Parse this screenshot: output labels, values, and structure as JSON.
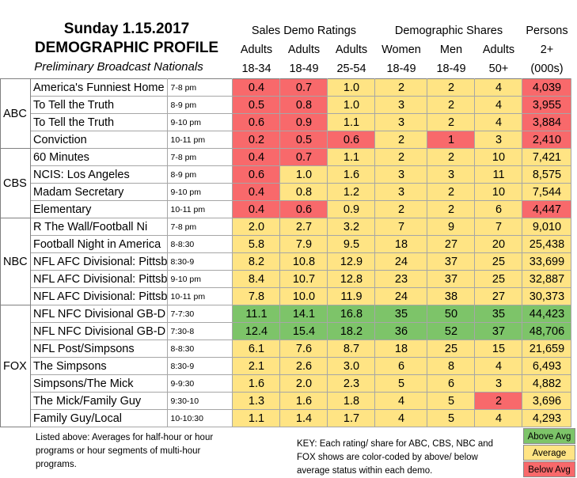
{
  "title_line1": "Sunday 1.15.2017",
  "title_line2": "DEMOGRAPHIC PROFILE",
  "title_line3": "Preliminary Broadcast Nationals",
  "group_headers": [
    "Sales Demo Ratings",
    "Demographic Shares",
    "Persons"
  ],
  "col_labels_a": [
    "Adults",
    "Adults",
    "Adults",
    "Women",
    "Men",
    "Adults",
    "2+"
  ],
  "col_labels_b": [
    "18-34",
    "18-49",
    "25-54",
    "18-49",
    "18-49",
    "50+",
    "(000s)"
  ],
  "colors": {
    "green": "#7dc469",
    "yellow": "#ffe484",
    "red": "#f8696b",
    "grid": "#a6a6a6"
  },
  "networks": [
    {
      "name": "ABC",
      "shows": [
        {
          "name": "America's Funniest Home",
          "slot": "7-8 pm",
          "vals": [
            "0.4",
            "0.7",
            "1.0",
            "2",
            "2",
            "4",
            "4,039"
          ]
        },
        {
          "name": "To Tell the Truth",
          "slot": "8-9 pm",
          "vals": [
            "0.5",
            "0.8",
            "1.0",
            "3",
            "2",
            "4",
            "3,955"
          ]
        },
        {
          "name": "To Tell the Truth",
          "slot": "9-10 pm",
          "vals": [
            "0.6",
            "0.9",
            "1.1",
            "3",
            "2",
            "4",
            "3,884"
          ]
        },
        {
          "name": "Conviction",
          "slot": "10-11 pm",
          "vals": [
            "0.2",
            "0.5",
            "0.6",
            "2",
            "1",
            "3",
            "2,410"
          ]
        }
      ]
    },
    {
      "name": "CBS",
      "shows": [
        {
          "name": "60 Minutes",
          "slot": "7-8 pm",
          "vals": [
            "0.4",
            "0.7",
            "1.1",
            "2",
            "2",
            "10",
            "7,421"
          ]
        },
        {
          "name": "NCIS: Los Angeles",
          "slot": "8-9 pm",
          "vals": [
            "0.6",
            "1.0",
            "1.6",
            "3",
            "3",
            "11",
            "8,575"
          ]
        },
        {
          "name": "Madam Secretary",
          "slot": "9-10 pm",
          "vals": [
            "0.4",
            "0.8",
            "1.2",
            "3",
            "2",
            "10",
            "7,544"
          ]
        },
        {
          "name": "Elementary",
          "slot": "10-11 pm",
          "vals": [
            "0.4",
            "0.6",
            "0.9",
            "2",
            "2",
            "6",
            "4,447"
          ]
        }
      ]
    },
    {
      "name": "NBC",
      "shows": [
        {
          "name": "R The Wall/Football Ni",
          "slot": "7-8 pm",
          "vals": [
            "2.0",
            "2.7",
            "3.2",
            "7",
            "9",
            "7",
            "9,010"
          ]
        },
        {
          "name": "Football Night in America",
          "slot": "8-8:30",
          "vals": [
            "5.8",
            "7.9",
            "9.5",
            "18",
            "27",
            "20",
            "25,438"
          ]
        },
        {
          "name": "NFL AFC Divisional: Pittsb",
          "slot": "8:30-9",
          "vals": [
            "8.2",
            "10.8",
            "12.9",
            "24",
            "37",
            "25",
            "33,699"
          ]
        },
        {
          "name": "NFL AFC Divisional: Pittsb",
          "slot": "9-10 pm",
          "vals": [
            "8.4",
            "10.7",
            "12.8",
            "23",
            "37",
            "25",
            "32,887"
          ]
        },
        {
          "name": "NFL AFC Divisional: Pittsb",
          "slot": "10-11 pm",
          "vals": [
            "7.8",
            "10.0",
            "11.9",
            "24",
            "38",
            "27",
            "30,373"
          ]
        }
      ]
    },
    {
      "name": "FOX",
      "shows": [
        {
          "name": "NFL NFC Divisional GB-D",
          "slot": "7-7:30",
          "vals": [
            "11.1",
            "14.1",
            "16.8",
            "35",
            "50",
            "35",
            "44,423"
          ]
        },
        {
          "name": "NFL NFC Divisional GB-D",
          "slot": "7:30-8",
          "vals": [
            "12.4",
            "15.4",
            "18.2",
            "36",
            "52",
            "37",
            "48,706"
          ]
        },
        {
          "name": "NFL Post/Simpsons",
          "slot": "8-8:30",
          "vals": [
            "6.1",
            "7.6",
            "8.7",
            "18",
            "25",
            "15",
            "21,659"
          ]
        },
        {
          "name": "The Simpsons",
          "slot": "8:30-9",
          "vals": [
            "2.1",
            "2.6",
            "3.0",
            "6",
            "8",
            "4",
            "6,493"
          ]
        },
        {
          "name": "Simpsons/The Mick",
          "slot": "9-9:30",
          "vals": [
            "1.6",
            "2.0",
            "2.3",
            "5",
            "6",
            "3",
            "4,882"
          ]
        },
        {
          "name": "The Mick/Family Guy",
          "slot": "9:30-10",
          "vals": [
            "1.3",
            "1.6",
            "1.8",
            "4",
            "5",
            "2",
            "3,696"
          ]
        },
        {
          "name": "Family Guy/Local",
          "slot": "10-10:30",
          "vals": [
            "1.1",
            "1.4",
            "1.7",
            "4",
            "5",
            "4",
            "4,293"
          ]
        }
      ]
    }
  ],
  "cell_colors": [
    [
      "r",
      "r",
      "y",
      "y",
      "y",
      "y",
      "r"
    ],
    [
      "r",
      "r",
      "y",
      "y",
      "y",
      "y",
      "r"
    ],
    [
      "r",
      "r",
      "y",
      "y",
      "y",
      "y",
      "r"
    ],
    [
      "r",
      "r",
      "r",
      "y",
      "r",
      "y",
      "r"
    ],
    [
      "r",
      "r",
      "y",
      "y",
      "y",
      "y",
      "y"
    ],
    [
      "r",
      "y",
      "y",
      "y",
      "y",
      "y",
      "y"
    ],
    [
      "r",
      "y",
      "y",
      "y",
      "y",
      "y",
      "y"
    ],
    [
      "r",
      "r",
      "y",
      "y",
      "y",
      "y",
      "r"
    ],
    [
      "y",
      "y",
      "y",
      "y",
      "y",
      "y",
      "y"
    ],
    [
      "y",
      "y",
      "y",
      "y",
      "y",
      "y",
      "y"
    ],
    [
      "y",
      "y",
      "y",
      "y",
      "y",
      "y",
      "y"
    ],
    [
      "y",
      "y",
      "y",
      "y",
      "y",
      "y",
      "y"
    ],
    [
      "y",
      "y",
      "y",
      "y",
      "y",
      "y",
      "y"
    ],
    [
      "g",
      "g",
      "g",
      "g",
      "g",
      "g",
      "g"
    ],
    [
      "g",
      "g",
      "g",
      "g",
      "g",
      "g",
      "g"
    ],
    [
      "y",
      "y",
      "y",
      "y",
      "y",
      "y",
      "y"
    ],
    [
      "y",
      "y",
      "y",
      "y",
      "y",
      "y",
      "y"
    ],
    [
      "y",
      "y",
      "y",
      "y",
      "y",
      "y",
      "y"
    ],
    [
      "y",
      "y",
      "y",
      "y",
      "y",
      "r",
      "y"
    ],
    [
      "y",
      "y",
      "y",
      "y",
      "y",
      "y",
      "y"
    ]
  ],
  "footnote": "Listed above: Averages for half-hour or hour programs or hour segments of multi-hour programs.",
  "key_text": "KEY: Each rating/ share for ABC, CBS, NBC and FOX shows are color-coded by above/ below average status within each demo.",
  "legend": [
    "Above Avg",
    "Average",
    "Below Avg"
  ]
}
